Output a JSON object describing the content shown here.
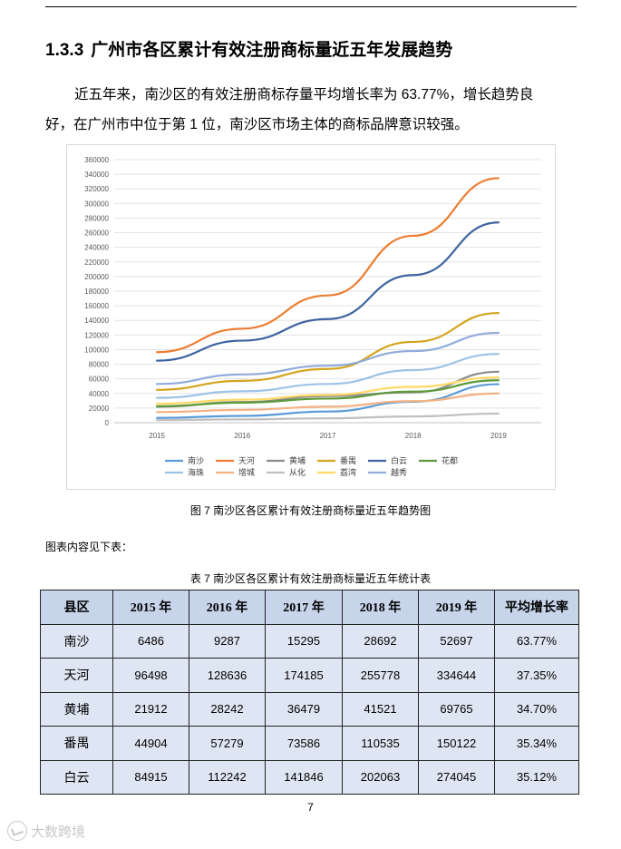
{
  "section": {
    "number": "1.3.3",
    "title": "广州市各区累计有效注册商标量近五年发展趋势"
  },
  "paragraph": {
    "line1": "近五年来，南沙区的有效注册商标存量平均增长率为 63.77%，增长趋势良",
    "line2": "好，在广州市中位于第 1 位，南沙区市场主体的商标品牌意识较强。"
  },
  "chart_data": {
    "type": "line",
    "title": "",
    "categories": [
      "2015",
      "2016",
      "2017",
      "2018",
      "2019"
    ],
    "ylim": [
      0,
      360000
    ],
    "ytick_step": 20000,
    "grid": true,
    "legend_position": "bottom",
    "series": [
      {
        "name": "南沙",
        "color": "#5b9bd5",
        "values": [
          6486,
          9287,
          15295,
          28692,
          52697
        ]
      },
      {
        "name": "天河",
        "color": "#ed7d31",
        "values": [
          96498,
          128636,
          174185,
          255778,
          334644
        ]
      },
      {
        "name": "黄埔",
        "color": "#8c8c8c",
        "values": [
          21912,
          28242,
          36479,
          41521,
          69765
        ]
      },
      {
        "name": "番禺",
        "color": "#d4a41c",
        "values": [
          44904,
          57279,
          73586,
          110535,
          150122
        ]
      },
      {
        "name": "白云",
        "color": "#3e64a0",
        "values": [
          84915,
          112242,
          141846,
          202063,
          274045
        ]
      },
      {
        "name": "花都",
        "color": "#5d9a3a",
        "values": [
          22500,
          27500,
          33000,
          42500,
          58000
        ]
      },
      {
        "name": "海珠",
        "color": "#9dc3e6",
        "values": [
          34000,
          43000,
          53000,
          72000,
          94000
        ]
      },
      {
        "name": "增城",
        "color": "#f4b183",
        "values": [
          14500,
          17500,
          22000,
          29500,
          40000
        ]
      },
      {
        "name": "从化",
        "color": "#bfbfbf",
        "values": [
          3500,
          4500,
          6000,
          8500,
          12500
        ]
      },
      {
        "name": "荔湾",
        "color": "#ffd966",
        "values": [
          26000,
          31500,
          38000,
          49000,
          62000
        ]
      },
      {
        "name": "越秀",
        "color": "#8faadc",
        "values": [
          53000,
          66000,
          78000,
          98000,
          123000
        ]
      }
    ]
  },
  "figure_caption": "图 7  南沙区各区累计有效注册商标量近五年趋势图",
  "see_below": "图表内容见下表：",
  "table_caption": "表 7  南沙区各区累计有效注册商标量近五年统计表",
  "table": {
    "headers": [
      "县区",
      "2015 年",
      "2016 年",
      "2017 年",
      "2018 年",
      "2019 年",
      "平均增长率"
    ],
    "rows": [
      [
        "南沙",
        "6486",
        "9287",
        "15295",
        "28692",
        "52697",
        "63.77%"
      ],
      [
        "天河",
        "96498",
        "128636",
        "174185",
        "255778",
        "334644",
        "37.35%"
      ],
      [
        "黄埔",
        "21912",
        "28242",
        "36479",
        "41521",
        "69765",
        "34.70%"
      ],
      [
        "番禺",
        "44904",
        "57279",
        "73586",
        "110535",
        "150122",
        "35.34%"
      ],
      [
        "白云",
        "84915",
        "112242",
        "141846",
        "202063",
        "274045",
        "35.12%"
      ]
    ]
  },
  "page_number": "7",
  "watermark": "大数跨境"
}
